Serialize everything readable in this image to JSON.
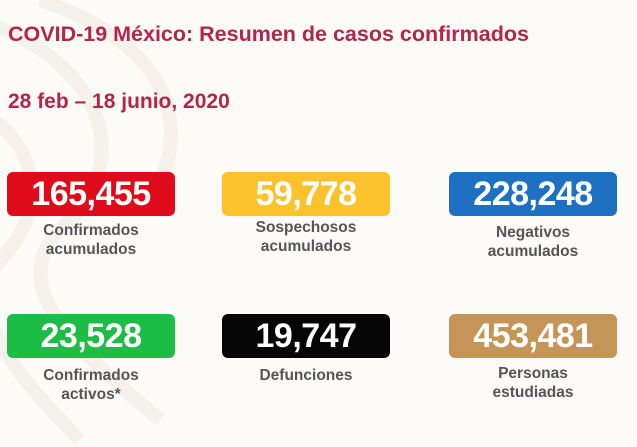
{
  "header": {
    "title": "COVID-19 México: Resumen de casos confirmados",
    "date_range": "28 feb – 18 junio, 2020"
  },
  "stats": [
    {
      "value": "165,455",
      "label1": "Confirmados",
      "label2": "acumulados",
      "color": "#e00b1a"
    },
    {
      "value": "59,778",
      "label1": "Sospechosos",
      "label2": "acumulados",
      "color": "#fcc22c"
    },
    {
      "value": "228,248",
      "label1": "Negativos",
      "label2": "acumulados",
      "color": "#1d70c2"
    },
    {
      "value": "23,528",
      "label1": "Confirmados",
      "label2": "activos*",
      "color": "#1bbd45"
    },
    {
      "value": "19,747",
      "label1": "Defunciones",
      "label2": "",
      "color": "#050505"
    },
    {
      "value": "453,481",
      "label1": "Personas",
      "label2": "estudiadas",
      "color": "#c59558"
    }
  ]
}
